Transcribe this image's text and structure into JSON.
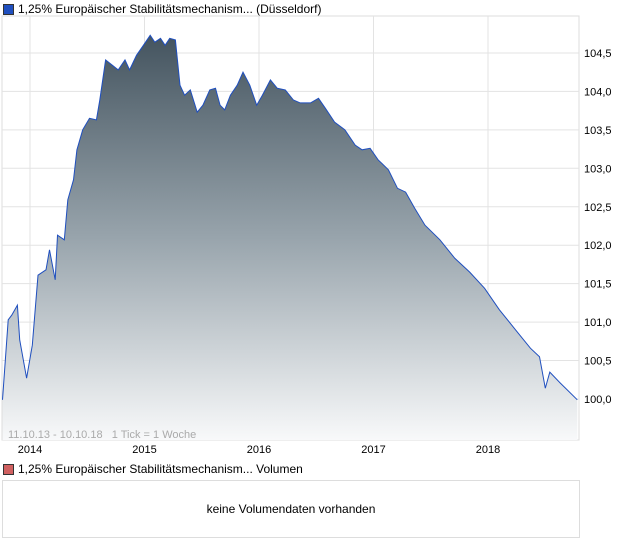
{
  "header": {
    "title": "1,25% Europäischer Stabilitätsmechanism... (Düsseldorf)",
    "color": "#1f4fbf"
  },
  "volume": {
    "title": "1,25% Europäischer Stabilitätsmechanism... Volumen",
    "color": "#d06060",
    "empty_text": "keine Volumendaten vorhanden"
  },
  "chart_data": {
    "type": "area",
    "title": "1,25% Europäischer Stabilitätsmechanism... (Düsseldorf)",
    "info": "11.10.13 - 10.10.18   1 Tick = 1 Woche",
    "xlim": [
      2013.76,
      2018.78
    ],
    "ylim": [
      99.7,
      105.2
    ],
    "x_ticks": [
      {
        "v": 2014,
        "label": "2014"
      },
      {
        "v": 2015,
        "label": "2015"
      },
      {
        "v": 2016,
        "label": "2016"
      },
      {
        "v": 2017,
        "label": "2017"
      },
      {
        "v": 2018,
        "label": "2018"
      }
    ],
    "y_ticks": [
      {
        "v": 100,
        "label": "100,0"
      },
      {
        "v": 100.5,
        "label": "100,5"
      },
      {
        "v": 101,
        "label": "101,0"
      },
      {
        "v": 101.5,
        "label": "101,5"
      },
      {
        "v": 102,
        "label": "102,0"
      },
      {
        "v": 102.5,
        "label": "102,5"
      },
      {
        "v": 103,
        "label": "103,0"
      },
      {
        "v": 103.5,
        "label": "103,5"
      },
      {
        "v": 104,
        "label": "104,0"
      },
      {
        "v": 104.5,
        "label": "104,5"
      }
    ],
    "grid": true,
    "x": [
      2013.76,
      2013.81,
      2013.84,
      2013.89,
      2013.91,
      2013.97,
      2014.02,
      2014.07,
      2014.14,
      2014.17,
      2014.22,
      2014.24,
      2014.3,
      2014.33,
      2014.38,
      2014.41,
      2014.46,
      2014.52,
      2014.58,
      2014.61,
      2014.66,
      2014.72,
      2014.77,
      2014.83,
      2014.87,
      2014.93,
      2014.99,
      2015.05,
      2015.09,
      2015.14,
      2015.18,
      2015.22,
      2015.27,
      2015.31,
      2015.35,
      2015.4,
      2015.46,
      2015.51,
      2015.57,
      2015.62,
      2015.66,
      2015.7,
      2015.75,
      2015.81,
      2015.86,
      2015.92,
      2015.98,
      2016.03,
      2016.1,
      2016.16,
      2016.23,
      2016.3,
      2016.36,
      2016.45,
      2016.52,
      2016.58,
      2016.66,
      2016.75,
      2016.84,
      2016.9,
      2016.97,
      2017.04,
      2017.13,
      2017.21,
      2017.28,
      2017.36,
      2017.45,
      2017.58,
      2017.71,
      2017.84,
      2017.97,
      2018.1,
      2018.24,
      2018.37,
      2018.45,
      2018.5,
      2018.54,
      2018.63,
      2018.78
    ],
    "y": [
      99.99,
      101.03,
      101.09,
      101.22,
      100.77,
      100.27,
      100.7,
      101.61,
      101.68,
      101.94,
      101.55,
      102.13,
      102.07,
      102.59,
      102.85,
      103.24,
      103.5,
      103.65,
      103.63,
      103.89,
      104.41,
      104.34,
      104.28,
      104.41,
      104.28,
      104.47,
      104.6,
      104.73,
      104.64,
      104.69,
      104.6,
      104.69,
      104.67,
      104.08,
      103.95,
      104.02,
      103.73,
      103.82,
      104.02,
      104.04,
      103.82,
      103.76,
      103.95,
      104.08,
      104.25,
      104.08,
      103.82,
      103.95,
      104.15,
      104.04,
      104.02,
      103.89,
      103.85,
      103.85,
      103.91,
      103.78,
      103.6,
      103.5,
      103.3,
      103.24,
      103.26,
      103.11,
      102.98,
      102.74,
      102.69,
      102.48,
      102.26,
      102.07,
      101.83,
      101.65,
      101.44,
      101.16,
      100.9,
      100.66,
      100.55,
      100.14,
      100.35,
      100.21,
      99.99
    ]
  }
}
